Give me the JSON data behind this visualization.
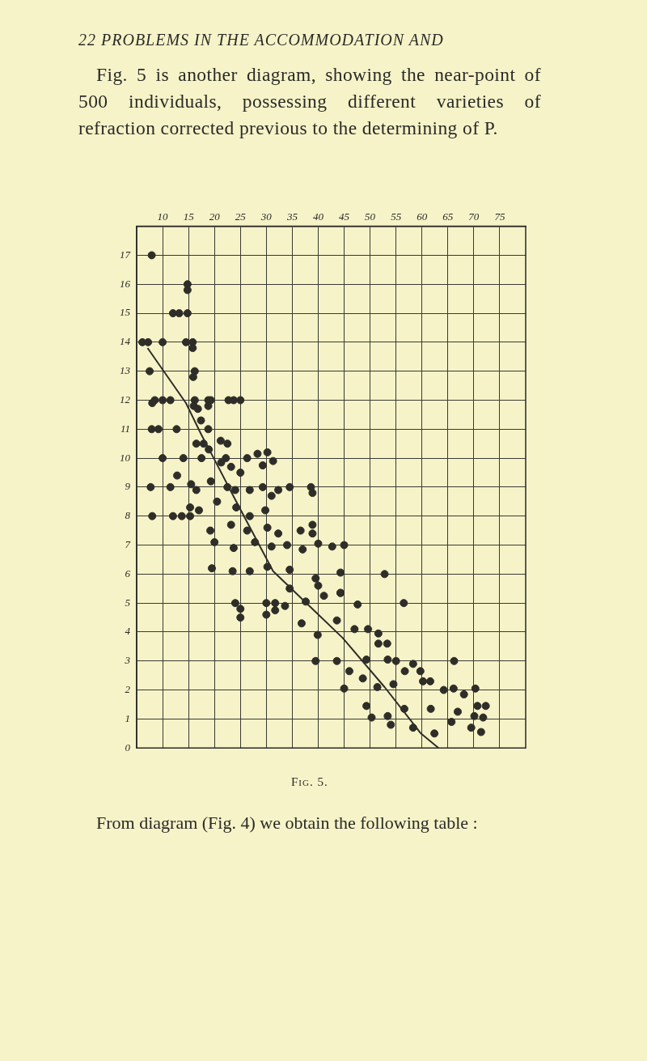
{
  "chart_data": {
    "type": "scatter",
    "annotations": [
      "22 PROBLEMS IN THE ACCOMMODATION AND",
      "Fig. 5 is another diagram, showing the near-point of 500 individuals, possessing different varieties of refraction corrected previous to the determining of P.",
      "Fig. 5.",
      "From diagram (Fig. 4) we obtain the following table :"
    ],
    "xlim": [
      5,
      80
    ],
    "xticks": [
      10,
      15,
      20,
      25,
      30,
      35,
      40,
      45,
      50,
      55,
      60,
      65,
      70,
      75
    ],
    "ylim": [
      0,
      18
    ],
    "yticks": [
      0,
      1,
      2,
      3,
      4,
      5,
      6,
      7,
      8,
      9,
      10,
      11,
      12,
      13,
      14,
      15,
      16,
      17,
      {
        "value": 18,
        "label": null
      }
    ],
    "grid": true,
    "line_style": "solid",
    "series": [
      {
        "marker": "circle",
        "color": "#2e2d28",
        "x": [
          7.9,
          14.8,
          14.8,
          12,
          13.2,
          14.8,
          6.1,
          7.2,
          10,
          14.5,
          15.8,
          15.8,
          7.5,
          16.2,
          15.9,
          8.5,
          10,
          11.5,
          16.2,
          18.8,
          19.3,
          22.7,
          23.7,
          25,
          8,
          16,
          18.8,
          16.8,
          17.4,
          18.8,
          7.9,
          9.2,
          12.7,
          16.5,
          17.9,
          18.9,
          21.2,
          22.5,
          10,
          14,
          17.5,
          21.3,
          23.2,
          22.2,
          26.3,
          28.3,
          30.2,
          29.3,
          31.3,
          12.8,
          19.3,
          25,
          7.7,
          11.5,
          15.5,
          16.5,
          22.5,
          24,
          26.8,
          29.3,
          32.3,
          34.5,
          38.6,
          38.9,
          31,
          15.3,
          8,
          12,
          13.7,
          15.3,
          17,
          20.5,
          24.2,
          26.8,
          29.8,
          19.2,
          23.2,
          26.3,
          30.2,
          32.3,
          38.9,
          38.9,
          36.6,
          20,
          23.7,
          27.8,
          31,
          34,
          37,
          40,
          42.7,
          45,
          19.5,
          23.5,
          26.8,
          30.2,
          34.5,
          39.5,
          44.3,
          52.8,
          34.5,
          40,
          44.3,
          24,
          25,
          25,
          30,
          31.7,
          31.7,
          30,
          33.6,
          37.6,
          41.1,
          44.3,
          47.6,
          56.5,
          36.8,
          39.9,
          43.6,
          47,
          49.6,
          51.6,
          51.6,
          53.3,
          39.5,
          43.6,
          46,
          49.3,
          53.4,
          55,
          58.3,
          66.2,
          45,
          48.6,
          51.4,
          54.5,
          56.7,
          59.7,
          60.2,
          61.6,
          64.2,
          66.1,
          68.1,
          70.3,
          70.7,
          72.3,
          49.3,
          53.4,
          56.6,
          61.7,
          66.9,
          70.1,
          50.3,
          54,
          58.3,
          62.4,
          65.7,
          69.5,
          71.8,
          71.4
        ],
        "values": [
          17,
          16,
          15.8,
          15,
          15,
          15,
          14,
          14,
          14,
          14,
          14,
          13.8,
          13,
          13,
          12.8,
          12,
          12,
          12,
          12,
          12,
          12,
          12,
          12,
          12,
          11.9,
          11.8,
          11.8,
          11.7,
          11.3,
          11,
          11,
          11,
          11,
          10.5,
          10.5,
          10.3,
          10.6,
          10.5,
          10,
          10,
          10,
          9.85,
          9.7,
          10,
          10,
          10.15,
          10.2,
          9.75,
          9.9,
          9.4,
          9.2,
          9.5,
          9,
          9,
          9.1,
          8.9,
          9,
          8.9,
          8.9,
          9,
          8.9,
          9,
          9,
          8.8,
          8.7,
          8.3,
          8,
          8,
          8,
          8,
          8.2,
          8.5,
          8.3,
          8,
          8.2,
          7.5,
          7.7,
          7.5,
          7.6,
          7.4,
          7.7,
          7.4,
          7.5,
          7.1,
          6.9,
          7.1,
          6.95,
          7,
          6.85,
          7.05,
          6.95,
          7,
          6.2,
          6.1,
          6.1,
          6.25,
          6.15,
          5.85,
          6.05,
          6,
          5.5,
          5.6,
          5.35,
          5,
          4.8,
          4.5,
          5,
          5,
          4.75,
          4.6,
          4.9,
          5.05,
          5.25,
          5.35,
          4.95,
          5,
          4.3,
          3.9,
          4.4,
          4.1,
          4.1,
          3.95,
          3.6,
          3.6,
          3,
          3,
          2.65,
          3.05,
          3.05,
          3,
          2.9,
          3,
          2.05,
          2.4,
          2.1,
          2.2,
          2.65,
          2.65,
          2.3,
          2.3,
          2,
          2.05,
          1.85,
          2.05,
          1.45,
          1.45,
          1.45,
          1.1,
          1.35,
          1.35,
          1.25,
          1.1,
          1.05,
          0.8,
          0.7,
          0.5,
          0.9,
          0.7,
          1.05,
          0.55
        ]
      },
      {
        "type": "line",
        "color": "#2e2d28",
        "x": [
          7.1,
          14.5,
          17.5,
          20,
          24.2,
          31.3,
          44.7,
          52.8,
          59.8,
          63.2
        ],
        "values": [
          13.8,
          11.9,
          10.8,
          9.95,
          8.5,
          6.1,
          3.8,
          2.1,
          0.5,
          0
        ]
      }
    ]
  }
}
